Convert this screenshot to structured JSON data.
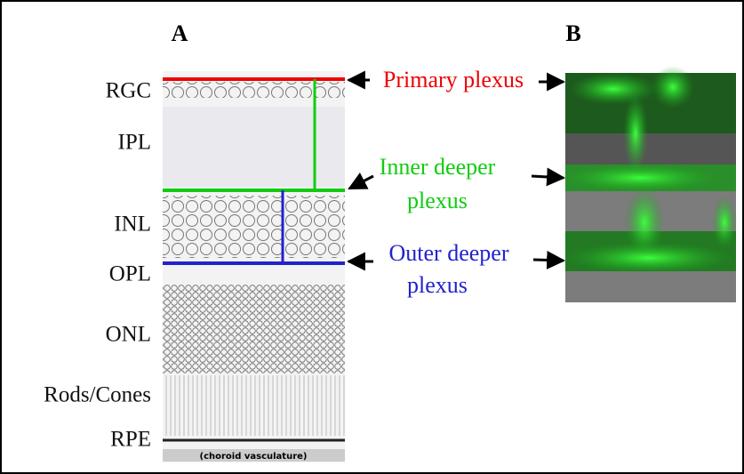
{
  "panels": [
    {
      "label": "A"
    },
    {
      "label": "B"
    }
  ],
  "layers": [
    "RGC",
    "IPL",
    "INL",
    "OPL",
    "ONL",
    "Rods/Cones",
    "RPE"
  ],
  "choroid_label": "(choroid vasculature)",
  "plexuses": [
    {
      "lines": [
        "Primary plexus"
      ]
    },
    {
      "lines": [
        "Inner deeper",
        "plexus"
      ]
    },
    {
      "lines": [
        "Outer deeper",
        "plexus"
      ]
    }
  ]
}
